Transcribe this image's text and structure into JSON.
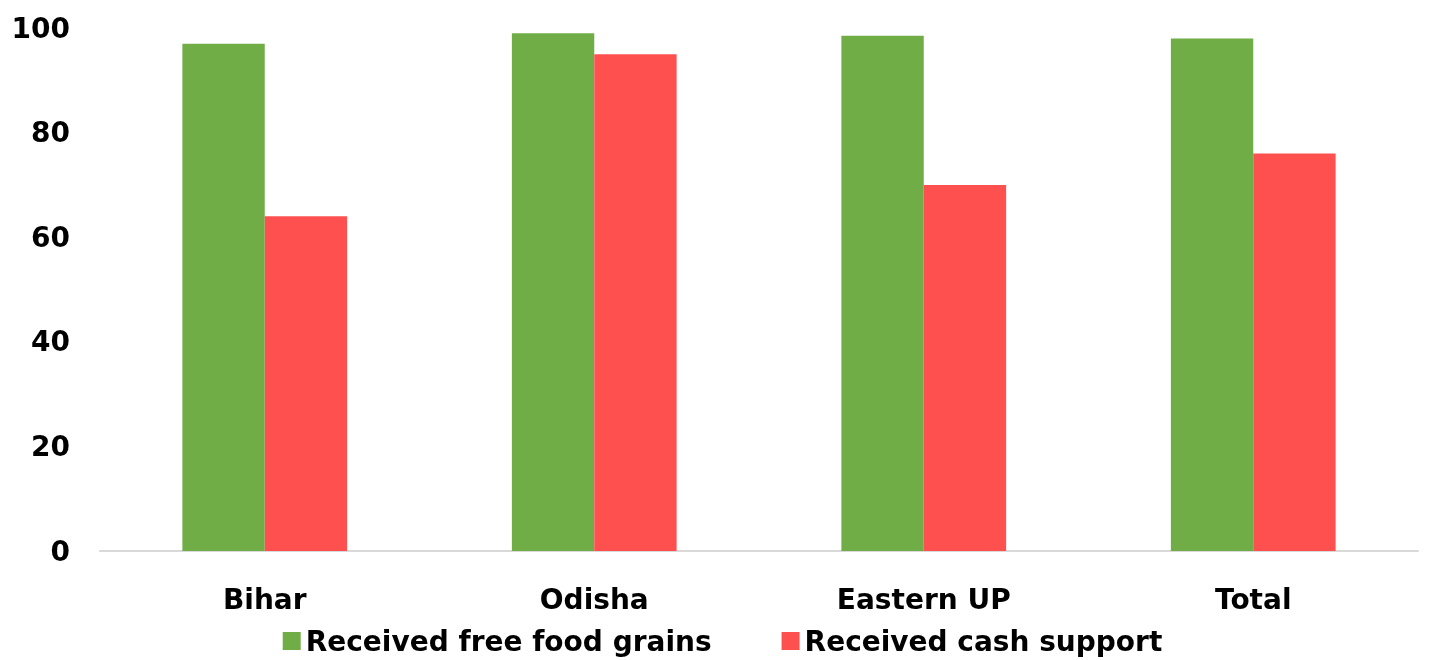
{
  "chart_data": {
    "type": "bar",
    "categories": [
      "Bihar",
      "Odisha",
      "Eastern UP",
      "Total"
    ],
    "series": [
      {
        "name": "Received free food grains",
        "color": "#70ad47",
        "values": [
          97,
          99,
          98.5,
          98
        ]
      },
      {
        "name": "Received cash support",
        "color": "#ff5050",
        "values": [
          64,
          95,
          70,
          76
        ]
      }
    ],
    "ylim": [
      0,
      100
    ],
    "yticks": [
      0,
      20,
      40,
      60,
      80,
      100
    ],
    "grid": false,
    "legend": "bottom"
  }
}
